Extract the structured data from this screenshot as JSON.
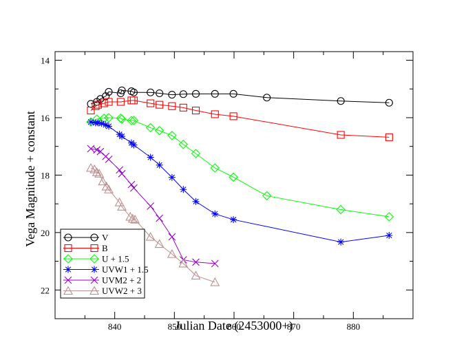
{
  "chart_data": {
    "type": "line",
    "title": "",
    "xlabel": "Julian Date (2453000+)",
    "ylabel": "Vega Magnitude + constant",
    "xlim": [
      830,
      890
    ],
    "ylim": [
      23.0,
      13.7
    ],
    "y_inverted": true,
    "grid": false,
    "legend_position": "bottom-left",
    "x_ticks": [
      840,
      850,
      860,
      870,
      880
    ],
    "y_ticks": [
      14,
      16,
      18,
      20,
      22
    ],
    "series": [
      {
        "name": "V",
        "color": "#000000",
        "marker": "circle",
        "x": [
          836.0,
          837.0,
          837.6,
          838.5,
          839.0,
          841.0,
          841.2,
          842.8,
          843.2,
          846.0,
          847.5,
          849.6,
          851.5,
          853.6,
          856.8,
          859.9,
          865.5,
          877.9,
          886.0
        ],
        "y": [
          15.52,
          15.45,
          15.35,
          15.25,
          15.1,
          15.15,
          15.05,
          15.08,
          15.12,
          15.12,
          15.15,
          15.2,
          15.18,
          15.17,
          15.17,
          15.17,
          15.3,
          15.42,
          15.48
        ]
      },
      {
        "name": "B",
        "color": "#ff0000",
        "marker": "square",
        "x": [
          836.0,
          836.8,
          837.2,
          838.2,
          839.0,
          841.0,
          842.8,
          843.2,
          846.0,
          847.5,
          849.6,
          851.5,
          853.6,
          856.8,
          859.9,
          877.9,
          886.0
        ],
        "y": [
          15.75,
          15.6,
          15.55,
          15.5,
          15.45,
          15.45,
          15.4,
          15.4,
          15.5,
          15.55,
          15.6,
          15.65,
          15.75,
          15.88,
          15.95,
          16.6,
          16.68
        ]
      },
      {
        "name": "U + 1.5",
        "color": "#00ff00",
        "marker": "diamond",
        "x": [
          836.0,
          837.0,
          838.2,
          839.0,
          841.0,
          841.2,
          842.8,
          843.2,
          846.0,
          847.5,
          849.6,
          851.5,
          853.6,
          856.8,
          859.9,
          865.5,
          877.9,
          886.0
        ],
        "y": [
          16.15,
          16.05,
          16.02,
          16.0,
          16.02,
          16.05,
          16.1,
          16.1,
          16.35,
          16.45,
          16.62,
          16.93,
          17.25,
          17.75,
          18.07,
          18.72,
          19.2,
          19.45
        ]
      },
      {
        "name": "UVW1 + 1.5",
        "color": "#0000ff",
        "marker": "star",
        "x": [
          836.0,
          836.8,
          837.2,
          837.8,
          838.5,
          839.0,
          840.8,
          841.2,
          842.8,
          843.2,
          846.0,
          847.5,
          849.6,
          851.5,
          853.6,
          856.8,
          859.9,
          877.9,
          886.0
        ],
        "y": [
          16.15,
          16.18,
          16.18,
          16.2,
          16.25,
          16.3,
          16.58,
          16.65,
          16.88,
          16.95,
          17.38,
          17.65,
          18.08,
          18.5,
          18.92,
          19.35,
          19.55,
          20.33,
          20.1
        ]
      },
      {
        "name": "UVM2 + 2",
        "color": "#9900cc",
        "marker": "x",
        "x": [
          836.0,
          837.0,
          837.6,
          838.5,
          839.0,
          840.8,
          841.2,
          842.8,
          843.2,
          846.0,
          847.5,
          849.6,
          851.5,
          853.6,
          856.8
        ],
        "y": [
          17.08,
          17.12,
          17.18,
          17.35,
          17.45,
          17.82,
          17.95,
          18.33,
          18.45,
          19.08,
          19.5,
          20.15,
          20.95,
          21.03,
          21.08
        ]
      },
      {
        "name": "UVW2 + 3",
        "color": "#bc8f8f",
        "marker": "triangle",
        "x": [
          836.0,
          836.6,
          837.0,
          837.4,
          838.0,
          838.6,
          839.0,
          840.8,
          841.2,
          842.6,
          843.0,
          843.4,
          846.0,
          847.5,
          849.6,
          851.5,
          853.6,
          856.8
        ],
        "y": [
          17.75,
          17.8,
          17.9,
          17.95,
          18.22,
          18.4,
          18.5,
          18.95,
          19.1,
          19.45,
          19.52,
          19.55,
          20.15,
          20.4,
          20.75,
          21.08,
          21.5,
          21.73
        ]
      }
    ]
  }
}
